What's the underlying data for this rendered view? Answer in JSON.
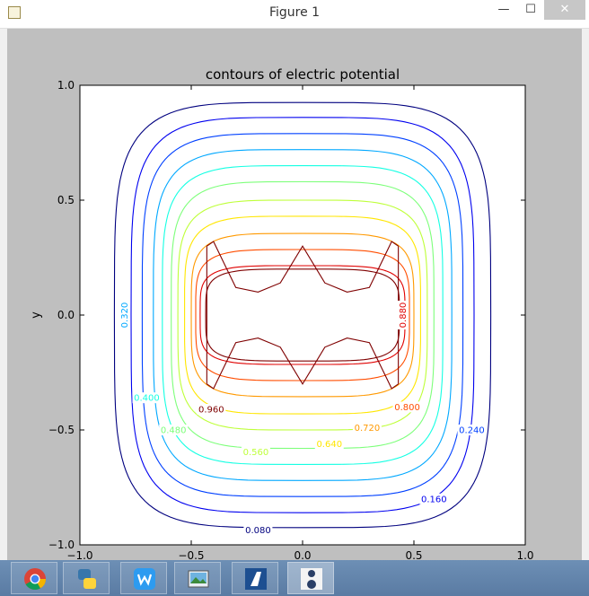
{
  "window": {
    "title": "Figure 1",
    "minimize_label": "—",
    "maximize_label": "☐",
    "close_label": "✕"
  },
  "chart_data": {
    "type": "contour",
    "title": "contours of electric potential",
    "xlabel": "",
    "ylabel": "y",
    "xlim": [
      -1.0,
      1.0
    ],
    "ylim": [
      -1.0,
      1.0
    ],
    "xticks": [
      "−1.0",
      "−0.5",
      "0.0",
      "0.5",
      "1.0"
    ],
    "yticks": [
      "−1.0",
      "−0.5",
      "0.0",
      "0.5",
      "1.0"
    ],
    "grid": false,
    "levels": [
      {
        "value": 0.08,
        "label": "0.080",
        "color": "#00007f",
        "half_width": 0.845,
        "half_height": 0.925,
        "roundness": 4.5,
        "label_at": [
          -0.2,
          -0.935
        ]
      },
      {
        "value": 0.16,
        "label": "0.160",
        "color": "#0000ef",
        "half_width": 0.77,
        "half_height": 0.86,
        "roundness": 4.5,
        "label_at": [
          0.59,
          -0.8
        ]
      },
      {
        "value": 0.24,
        "label": "0.240",
        "color": "#0040ff",
        "half_width": 0.72,
        "half_height": 0.79,
        "roundness": 4.5,
        "label_at": [
          0.76,
          -0.5
        ]
      },
      {
        "value": 0.32,
        "label": "0.320",
        "color": "#00a8ff",
        "half_width": 0.67,
        "half_height": 0.72,
        "roundness": 4.5,
        "label_at": [
          -0.8,
          0.0
        ]
      },
      {
        "value": 0.4,
        "label": "0.400",
        "color": "#14ffe3",
        "half_width": 0.63,
        "half_height": 0.65,
        "roundness": 4.5,
        "label_at": [
          -0.7,
          -0.36
        ]
      },
      {
        "value": 0.48,
        "label": "0.480",
        "color": "#7dff7a",
        "half_width": 0.59,
        "half_height": 0.58,
        "roundness": 4.5,
        "label_at": [
          -0.58,
          -0.5
        ]
      },
      {
        "value": 0.56,
        "label": "0.560",
        "color": "#beff39",
        "half_width": 0.56,
        "half_height": 0.5,
        "roundness": 4.5,
        "label_at": [
          -0.21,
          -0.595
        ]
      },
      {
        "value": 0.64,
        "label": "0.640",
        "color": "#ffe600",
        "half_width": 0.53,
        "half_height": 0.43,
        "roundness": 4.5,
        "label_at": [
          0.12,
          -0.56
        ]
      },
      {
        "value": 0.72,
        "label": "0.720",
        "color": "#ff9900",
        "half_width": 0.5,
        "half_height": 0.355,
        "roundness": 4.5,
        "label_at": [
          0.29,
          -0.49
        ]
      },
      {
        "value": 0.8,
        "label": "0.800",
        "color": "#ff4d00",
        "half_width": 0.48,
        "half_height": 0.285,
        "roundness": 4.5,
        "label_at": [
          0.47,
          -0.4
        ]
      },
      {
        "value": 0.88,
        "label": "0.880",
        "color": "#e00000",
        "half_width": 0.46,
        "half_height": 0.215,
        "roundness": 4.5,
        "label_at": [
          0.45,
          0.0
        ]
      },
      {
        "value": 0.96,
        "label": "0.960",
        "color": "#7f0000",
        "half_width": 0.435,
        "half_height": 0.2,
        "roundness": 4.5,
        "label_at": [
          -0.41,
          -0.41
        ]
      }
    ],
    "inner_region": {
      "color": "#7f0000",
      "top_points": [
        [
          -0.43,
          0.3
        ],
        [
          -0.4,
          0.32
        ],
        [
          -0.3,
          0.12
        ],
        [
          -0.2,
          0.1
        ],
        [
          -0.1,
          0.14
        ],
        [
          0.0,
          0.3
        ],
        [
          0.1,
          0.14
        ],
        [
          0.2,
          0.1
        ],
        [
          0.3,
          0.12
        ],
        [
          0.4,
          0.32
        ],
        [
          0.43,
          0.3
        ]
      ],
      "bottom_points": [
        [
          -0.43,
          -0.3
        ],
        [
          -0.4,
          -0.32
        ],
        [
          -0.3,
          -0.12
        ],
        [
          -0.2,
          -0.1
        ],
        [
          -0.1,
          -0.14
        ],
        [
          0.0,
          -0.3
        ],
        [
          0.1,
          -0.14
        ],
        [
          0.2,
          -0.1
        ],
        [
          0.3,
          -0.12
        ],
        [
          0.4,
          -0.32
        ],
        [
          0.43,
          -0.3
        ]
      ]
    }
  },
  "taskbar": {
    "items": [
      {
        "name": "chrome",
        "icon": "chrome-icon"
      },
      {
        "name": "python",
        "icon": "python-icon"
      },
      {
        "name": "writer",
        "icon": "w-app-icon"
      },
      {
        "name": "photos",
        "icon": "photo-viewer-icon"
      },
      {
        "name": "acrobat",
        "icon": "a-app-icon"
      },
      {
        "name": "figure",
        "icon": "figure-window-icon"
      }
    ]
  }
}
